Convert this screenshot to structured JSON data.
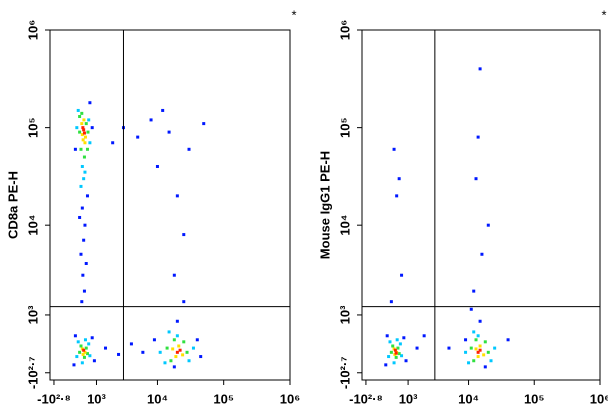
{
  "chart_data": [
    {
      "type": "scatter",
      "ylabel": "CD8a PE-H",
      "annotation": "*",
      "scale": "asinh",
      "xlim": [
        -800,
        1000000
      ],
      "ylim": [
        -700,
        1000000
      ],
      "xticks": [
        {
          "value": -631,
          "label": "-10²·⁸"
        },
        {
          "value": 1000,
          "label": "10³"
        },
        {
          "value": 10000,
          "label": "10⁴"
        },
        {
          "value": 100000,
          "label": "10⁵"
        },
        {
          "value": 1000000,
          "label": "10⁶"
        }
      ],
      "yticks": [
        {
          "value": -501,
          "label": "-10²·⁷"
        },
        {
          "value": 1000,
          "label": "10³"
        },
        {
          "value": 10000,
          "label": "10⁴"
        },
        {
          "value": 100000,
          "label": "10⁵"
        },
        {
          "value": 1000000,
          "label": "10⁶"
        }
      ],
      "gates": {
        "x": 3000,
        "y": 1300
      },
      "series": [
        {
          "color": "#0018ff",
          "x": [
            400,
            500,
            450,
            350,
            550,
            420,
            480,
            380,
            600,
            300,
            700,
            800,
            150,
            3000,
            5000,
            8000,
            15000,
            30000,
            2000,
            10000,
            20000,
            25000,
            12000,
            50000,
            18000,
            150,
            800,
            1500,
            2500,
            100,
            900,
            4000,
            6000,
            9000,
            45000,
            20000,
            25000,
            18000,
            40000
          ],
          "y": [
            15000,
            10000,
            7000,
            5000,
            4000,
            3000,
            2000,
            1500,
            20000,
            12000,
            180000,
            100000,
            60000,
            100000,
            80000,
            120000,
            90000,
            60000,
            70000,
            40000,
            20000,
            8000,
            150000,
            110000,
            3000,
            400,
            350,
            100,
            -50,
            -300,
            -200,
            200,
            0,
            300,
            -100,
            800,
            1500,
            -350,
            300
          ]
        },
        {
          "color": "#00c8ff",
          "x": [
            250,
            700,
            400,
            500,
            650,
            200,
            450,
            350,
            250,
            650,
            200,
            700,
            400,
            520,
            11000,
            35000,
            13000,
            30000,
            20000,
            15000
          ],
          "y": [
            150000,
            70000,
            40000,
            35000,
            120000,
            100000,
            30000,
            25000,
            250,
            200,
            -100,
            -80,
            -250,
            300,
            0,
            100,
            -250,
            -200,
            400,
            500
          ]
        },
        {
          "color": "#30e040",
          "x": [
            300,
            600,
            350,
            550,
            480,
            380,
            620,
            300,
            350,
            550,
            480,
            300,
            600,
            14000,
            28000,
            16000,
            25000,
            18000
          ],
          "y": [
            130000,
            60000,
            60000,
            110000,
            50000,
            140000,
            90000,
            90000,
            150,
            100,
            -120,
            0,
            -30,
            100,
            0,
            -200,
            250,
            300
          ]
        },
        {
          "color": "#ffe000",
          "x": [
            380,
            520,
            460,
            500,
            400,
            430,
            400,
            500,
            430,
            17000,
            24000,
            19000,
            21000
          ],
          "y": [
            110000,
            80000,
            120000,
            70000,
            85000,
            75000,
            80,
            0,
            -50,
            80,
            -60,
            -100,
            150
          ]
        },
        {
          "color": "#ff2000",
          "x": [
            450,
            480,
            420,
            450,
            20000,
            22000
          ],
          "y": [
            95000,
            88000,
            100000,
            50,
            0,
            50
          ]
        }
      ]
    },
    {
      "type": "scatter",
      "ylabel": "Mouse IgG1 PE-H",
      "annotation": "*",
      "scale": "asinh",
      "xlim": [
        -800,
        1000000
      ],
      "ylim": [
        -700,
        1000000
      ],
      "xticks": [
        {
          "value": -631,
          "label": "-10²·⁸"
        },
        {
          "value": 1000,
          "label": "10³"
        },
        {
          "value": 10000,
          "label": "10⁴"
        },
        {
          "value": 100000,
          "label": "10⁵"
        },
        {
          "value": 1000000,
          "label": "10⁶"
        }
      ],
      "yticks": [
        {
          "value": -501,
          "label": "-10²·⁷"
        },
        {
          "value": 1000,
          "label": "10³"
        },
        {
          "value": 10000,
          "label": "10⁴"
        },
        {
          "value": 100000,
          "label": "10⁵"
        },
        {
          "value": 1000000,
          "label": "10⁶"
        }
      ],
      "gates": {
        "x": 3000,
        "y": 1300
      },
      "series": [
        {
          "color": "#0018ff",
          "x": [
            500,
            600,
            15000,
            14000,
            13000,
            700,
            300,
            16000,
            12000,
            2000,
            5000,
            150,
            800,
            1500,
            100,
            900,
            9000,
            40000,
            15000,
            18000,
            11000,
            400,
            20000
          ],
          "y": [
            20000,
            30000,
            400000,
            80000,
            30000,
            3000,
            1500,
            5000,
            2000,
            400,
            100,
            400,
            350,
            100,
            -300,
            -200,
            300,
            300,
            800,
            -350,
            1200,
            60000,
            10000
          ]
        },
        {
          "color": "#00c8ff",
          "x": [
            250,
            650,
            200,
            700,
            400,
            520,
            9000,
            25000,
            10000,
            22000,
            14000,
            12000
          ],
          "y": [
            250,
            200,
            -100,
            -80,
            -250,
            300,
            0,
            100,
            -250,
            -200,
            400,
            500
          ]
        },
        {
          "color": "#30e040",
          "x": [
            350,
            550,
            480,
            300,
            600,
            11000,
            20000,
            12000,
            18000,
            13000
          ],
          "y": [
            150,
            100,
            -120,
            0,
            -30,
            100,
            0,
            -200,
            250,
            300
          ]
        },
        {
          "color": "#ffe000",
          "x": [
            400,
            500,
            430,
            13000,
            17000,
            14000,
            15000
          ],
          "y": [
            80,
            0,
            -50,
            80,
            -60,
            -100,
            150
          ]
        },
        {
          "color": "#ff2000",
          "x": [
            450,
            480,
            14000,
            15000
          ],
          "y": [
            50,
            -20,
            0,
            50
          ]
        }
      ]
    }
  ]
}
